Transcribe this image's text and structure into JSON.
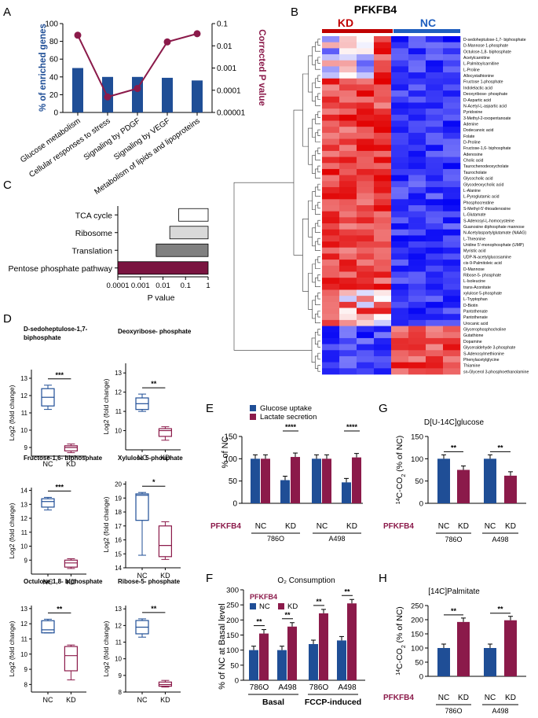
{
  "colors": {
    "blue": "#1f4e96",
    "maroon": "#8b1a4a",
    "maroon_dark": "#7a1440",
    "kd_red": "#c00000",
    "nc_blue": "#1f5fbf"
  },
  "chart_data": [
    {
      "panel": "A",
      "type": "bar",
      "categories": [
        "Glucose metabolism",
        "Cellular responses to stress",
        "Signaling by PDGF",
        "Signaling by VEGF",
        "Metabolism of lipids and lipoproteins"
      ],
      "values": [
        50,
        40,
        40,
        39,
        36
      ],
      "pvalues": [
        0.03,
        5e-05,
        0.00012,
        0.015,
        0.035
      ],
      "ylabel": "% of enriched genes",
      "ylabel2": "Corrected P value",
      "ylim": [
        0,
        100
      ],
      "yticks": [
        "0",
        "20",
        "40",
        "60",
        "80",
        "100"
      ],
      "y2ticks": [
        "0.1",
        "0.01",
        "0.001",
        "0.0001",
        "0.00001"
      ]
    },
    {
      "panel": "B",
      "type": "heatmap",
      "title": "PFKFB4",
      "groups": [
        "KD",
        "NC"
      ],
      "rows": [
        "D-sedoheptulose-1,7- biphosphate",
        "D-Mannose 1-phosphate",
        "Octulose-1,8- biphosphate",
        "Acetylcarnitine",
        "L-Palmitoylcarnitine",
        "L-Proline",
        "Allocystathionine",
        "Fructose 1-phosphate",
        "Indolelactic acid",
        "Deoxyribose- phosphate",
        "D-Aspartic acid",
        "N-Acetyl-L-aspartic acid",
        "Pyridoxine",
        "3-Methyl-2-oxopentanoate",
        "Adenine",
        "Dodecanoic acid",
        "Folate",
        "D-Proline",
        "Fructose-1,6- biphosphate",
        "Adenosine",
        "Cholic acid",
        "Taurochenodeoxycholate",
        "Taurocholate",
        "Glycocholic acid",
        "Glycodeoxycholic acid",
        "L-Alanine",
        "L-Pyroglutamic acid",
        "Phosphocreatine",
        "S-Methyl-5'-thioadenosine",
        "L-Glutamate",
        "S-Adenosyl-L-homocysteine",
        "Guanosine diphosphate mannose",
        "N-Acetylaspartylglutamate (NAAG)",
        "L-Threonine",
        "Uridine 5'-monophosphate (UMP)",
        "Myristic acid",
        "UDP-N-acetylglucosamine",
        "cis-9-Palmitoleic acid",
        "D-Mannose",
        "Ribose-5- phosphate",
        "L-Isoleucine",
        "trans-Aconitate",
        "xylulose 5-phosphate",
        "L-Tryptophan",
        "D-Biotin",
        "Pantothenate",
        "Pantothenate",
        "Urocanic acid",
        "Glycerophosphocholine",
        "Gutathione",
        "Dopamine",
        "Glyceraldehyde 3-phosphate",
        "S-Adenosylmethionine",
        "Phenylacetylglycine",
        "Thiamine",
        "sn-Glycerol 3-phosphoethanolamine"
      ]
    },
    {
      "panel": "C",
      "type": "bar",
      "categories": [
        "TCA cycle",
        "Ribosome",
        "Translation",
        "Pentose phosphate pathway"
      ],
      "values": [
        0.05,
        0.02,
        0.005,
        0.0001
      ],
      "xlabel": "P value",
      "xticks": [
        "0.0001",
        "0.001",
        "0.01",
        "0.1",
        "1"
      ]
    },
    {
      "panel": "D",
      "type": "boxplot",
      "ylabel": "Log2 (fold change)",
      "categories": [
        "NC",
        "KD"
      ],
      "plots": [
        {
          "title": "D-sedoheptulose-1,7- biphosphate",
          "sig": "***",
          "yticks": [
            9,
            10,
            11,
            12,
            13
          ],
          "ylim": [
            8.5,
            13.5
          ],
          "boxes": [
            {
              "min": 11.2,
              "q1": 11.4,
              "med": 11.9,
              "q3": 12.4,
              "max": 12.6
            },
            {
              "min": 8.7,
              "q1": 8.8,
              "med": 9.0,
              "q3": 9.1,
              "max": 9.2
            }
          ]
        },
        {
          "title": "Deoxyribose- phosphate",
          "sig": "**",
          "yticks": [
            10,
            11,
            12,
            13
          ],
          "ylim": [
            9.0,
            13.5
          ],
          "boxes": [
            {
              "min": 11.0,
              "q1": 11.1,
              "med": 11.4,
              "q3": 11.7,
              "max": 11.9
            },
            {
              "min": 9.5,
              "q1": 9.7,
              "med": 10.0,
              "q3": 10.1,
              "max": 10.2
            }
          ]
        },
        {
          "title": "Fructose-1,6- biphosphate",
          "sig": "***",
          "yticks": [
            9,
            10,
            11,
            12,
            13,
            14
          ],
          "ylim": [
            8.0,
            14.2
          ],
          "boxes": [
            {
              "min": 12.6,
              "q1": 12.8,
              "med": 13.2,
              "q3": 13.4,
              "max": 13.5
            },
            {
              "min": 8.4,
              "q1": 8.5,
              "med": 8.8,
              "q3": 9.0,
              "max": 9.1
            }
          ]
        },
        {
          "title": "Xylulose 5-phosphate",
          "sig": "*",
          "yticks": [
            14,
            15,
            16,
            17,
            18,
            19,
            20
          ],
          "ylim": [
            14.0,
            20.2
          ],
          "boxes": [
            {
              "min": 14.9,
              "q1": 17.4,
              "med": 19.2,
              "q3": 19.3,
              "max": 19.4
            },
            {
              "min": 14.6,
              "q1": 14.8,
              "med": 15.6,
              "q3": 17.0,
              "max": 17.3
            }
          ]
        },
        {
          "title": "Octulose-1,8- biphosphate",
          "sig": "**",
          "yticks": [
            8,
            9,
            10,
            11,
            12,
            13
          ],
          "ylim": [
            7.5,
            13.2
          ],
          "boxes": [
            {
              "min": 11.4,
              "q1": 11.4,
              "med": 11.6,
              "q3": 12.2,
              "max": 12.3
            },
            {
              "min": 8.3,
              "q1": 8.9,
              "med": 9.9,
              "q3": 10.5,
              "max": 10.6
            }
          ]
        },
        {
          "title": "Ribose-5- phosphate",
          "sig": "**",
          "yticks": [
            8,
            9,
            10,
            11,
            12,
            13
          ],
          "ylim": [
            8.0,
            13.2
          ],
          "boxes": [
            {
              "min": 11.3,
              "q1": 11.5,
              "med": 11.9,
              "q3": 12.3,
              "max": 12.4
            },
            {
              "min": 8.3,
              "q1": 8.35,
              "med": 8.45,
              "q3": 8.6,
              "max": 8.7
            }
          ]
        }
      ]
    },
    {
      "panel": "E",
      "type": "bar",
      "ylabel": "% of NC",
      "ylim": [
        0,
        150
      ],
      "yticks": [
        "0",
        "50",
        "100",
        "150"
      ],
      "legend": [
        "Glucose uptake",
        "Lactate secretion"
      ],
      "row_label": "PFKFB4",
      "groups": [
        {
          "label": "786O",
          "sublabels": [
            "NC",
            "KD"
          ]
        },
        {
          "label": "A498",
          "sublabels": [
            "NC",
            "KD"
          ]
        }
      ],
      "series": [
        {
          "name": "Glucose uptake",
          "values": [
            100,
            52,
            100,
            47
          ]
        },
        {
          "name": "Lactate secretion",
          "values": [
            100,
            104,
            100,
            103
          ]
        }
      ],
      "sig": [
        "****",
        "****"
      ]
    },
    {
      "panel": "F",
      "type": "bar",
      "title": "O₂ Consumption",
      "ylabel": "% of NC at Basal level",
      "ylim": [
        0,
        300
      ],
      "yticks": [
        "0",
        "50",
        "100",
        "150",
        "200",
        "250",
        "300"
      ],
      "legend_title": "PFKFB4",
      "legend": [
        "NC",
        "KD"
      ],
      "categories": [
        "786O",
        "A498",
        "786O",
        "A498"
      ],
      "group_labels": [
        "Basal",
        "FCCP-induced"
      ],
      "series": [
        {
          "name": "NC",
          "values": [
            100,
            100,
            120,
            132
          ]
        },
        {
          "name": "KD",
          "values": [
            155,
            178,
            222,
            255
          ]
        }
      ],
      "sig": [
        "**",
        "**",
        "**",
        "**"
      ]
    },
    {
      "panel": "G",
      "type": "bar",
      "title": "D[U-14C]glucose",
      "ylabel": "14C-CO2 (% of NC)",
      "ylim": [
        0,
        150
      ],
      "yticks": [
        "0",
        "50",
        "100",
        "150"
      ],
      "row_label": "PFKFB4",
      "groups": [
        {
          "label": "786O",
          "sublabels": [
            "NC",
            "KD"
          ]
        },
        {
          "label": "A498",
          "sublabels": [
            "NC",
            "KD"
          ]
        }
      ],
      "values": [
        100,
        75,
        100,
        62
      ],
      "sig": [
        "**",
        "**"
      ]
    },
    {
      "panel": "H",
      "type": "bar",
      "title": "[14C]Palmitate",
      "ylabel": "14C-CO2 (% of NC)",
      "ylim": [
        0,
        250
      ],
      "yticks": [
        "0",
        "50",
        "100",
        "150",
        "200",
        "250"
      ],
      "row_label": "PFKFB4",
      "groups": [
        {
          "label": "786O",
          "sublabels": [
            "NC",
            "KD"
          ]
        },
        {
          "label": "A498",
          "sublabels": [
            "NC",
            "KD"
          ]
        }
      ],
      "values": [
        100,
        192,
        100,
        198
      ],
      "sig": [
        "**",
        "**"
      ]
    }
  ],
  "panel_letters": [
    "A",
    "B",
    "C",
    "D",
    "E",
    "F",
    "G",
    "H"
  ]
}
